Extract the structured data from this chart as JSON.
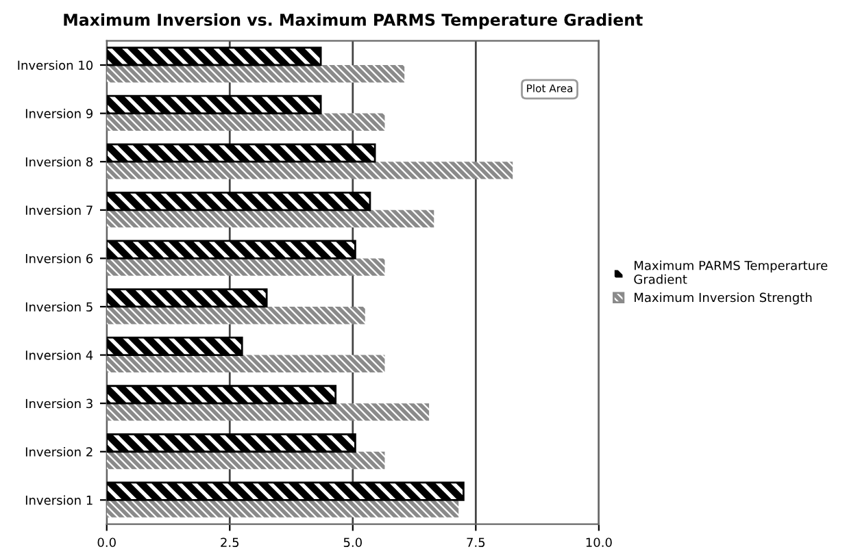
{
  "chart_data": {
    "type": "bar",
    "orientation": "horizontal",
    "title": "Maximum Inversion vs. Maximum PARMS Temperature Gradient",
    "categories": [
      "Inversion 10",
      "Inversion 9",
      "Inversion 8",
      "Inversion 7",
      "Inversion 6",
      "Inversion 5",
      "Inversion 4",
      "Inversion 3",
      "Inversion 2",
      "Inversion 1"
    ],
    "series": [
      {
        "name": "Maximum PARMS Temperarture Gradient",
        "color": "#000000",
        "values": [
          4.35,
          4.35,
          5.45,
          5.35,
          5.05,
          3.25,
          2.75,
          4.65,
          5.05,
          7.25
        ]
      },
      {
        "name": "Maximum Inversion Strength",
        "color": "#8a8a8a",
        "values": [
          6.05,
          5.65,
          8.25,
          6.65,
          5.65,
          5.25,
          5.65,
          6.55,
          5.65,
          7.15
        ]
      }
    ],
    "xlim": [
      0,
      10
    ],
    "xticks": [
      {
        "value": 0,
        "label": "0.0"
      },
      {
        "value": 2.5,
        "label": "2.5"
      },
      {
        "value": 5,
        "label": "5.0"
      },
      {
        "value": 7.5,
        "label": "7.5"
      },
      {
        "value": 10,
        "label": "10.0"
      }
    ],
    "grid": "x",
    "legend": "right",
    "annotations": [
      "Plot Area"
    ]
  }
}
